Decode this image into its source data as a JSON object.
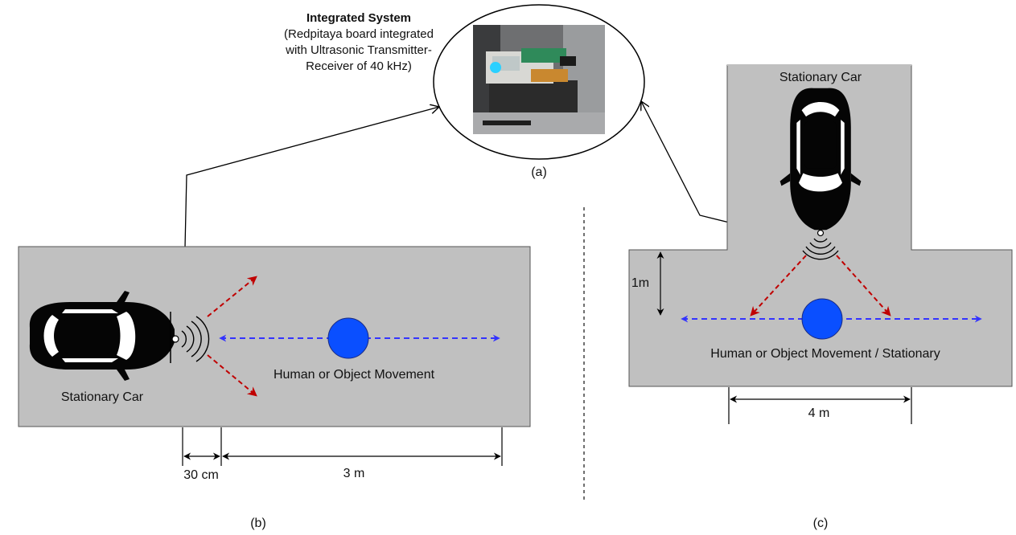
{
  "integrated_system": {
    "title": "Integrated System",
    "line1": "(Redpitaya board integrated",
    "line2": "with Ultrasonic Transmitter-",
    "line3": "Receiver of 40 kHz)"
  },
  "captions": {
    "a": "(a)",
    "b": "(b)",
    "c": "(c)"
  },
  "panel_b": {
    "car_label": "Stationary Car",
    "movement_label": "Human or Object Movement",
    "dim_gap": "30 cm",
    "dim_range": "3 m"
  },
  "panel_c": {
    "car_label": "Stationary Car",
    "movement_label": "Human or Object Movement / Stationary",
    "dim_depth": "1m",
    "dim_width": "4 m"
  },
  "colors": {
    "road": "#c0c0c0",
    "object": "#0a4fff",
    "movement_arrow": "#3333ff",
    "beam_arrow": "#c00000",
    "car": "#050505",
    "lines": "#000000"
  },
  "icons": {
    "car": "car-top-view-icon",
    "sensor": "ultrasonic-wave-icon",
    "object": "target-object-icon",
    "photo": "device-photo"
  }
}
